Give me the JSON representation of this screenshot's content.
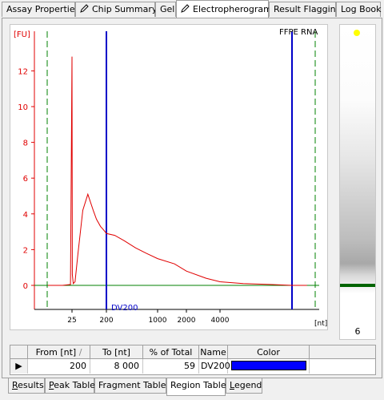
{
  "top_tabs": [
    {
      "label": "Assay Properties"
    },
    {
      "label": "Chip Summary"
    },
    {
      "label": "Gel"
    },
    {
      "label": "Electropherogram"
    },
    {
      "label": "Result Flagging"
    },
    {
      "label": "Log Book"
    }
  ],
  "chart": {
    "sample_name": "FFPE RNA",
    "y_unit_label": "[FU]",
    "x_unit_label": "[nt]",
    "region_label": "DV200",
    "colors": {
      "trace": "#e00000",
      "marker": "#0000c8",
      "baseline": "#008000",
      "dashed": "#008000"
    }
  },
  "chart_data": {
    "type": "line",
    "title": "FFPE RNA",
    "ylabel": "[FU]",
    "xlabel": "[nt]",
    "y_ticks": [
      "0",
      "2",
      "4",
      "6",
      "8",
      "10",
      "12"
    ],
    "x_ticks": [
      "25",
      "200",
      "1000",
      "2000",
      "4000"
    ],
    "ylim": [
      -1.3,
      14
    ],
    "region_markers_nt": [
      200,
      8000
    ],
    "series": [
      {
        "x_nt": [
          18,
          22,
          24.5,
          25,
          25.5,
          27,
          30,
          36,
          48,
          65,
          90,
          110,
          140,
          170,
          200,
          260,
          350,
          500,
          700,
          1000,
          1500,
          2000,
          3000,
          4000,
          5000,
          6500,
          8000,
          10000
        ],
        "y": [
          0.0,
          0.0,
          0.05,
          12.8,
          0.6,
          0.1,
          0.2,
          1.8,
          4.2,
          5.1,
          4.2,
          3.7,
          3.3,
          3.1,
          2.9,
          2.8,
          2.5,
          2.1,
          1.8,
          1.5,
          1.2,
          0.8,
          0.4,
          0.2,
          0.1,
          0.05,
          0.0,
          0.0
        ]
      }
    ]
  },
  "gel": {
    "lane_label": "6",
    "marker_color": "#ffff00",
    "band_color": "#006400"
  },
  "region_table": {
    "columns": [
      "From [nt]",
      "To [nt]",
      "% of Total",
      "Name",
      "Color"
    ],
    "sort_indicator": "/",
    "row": {
      "from": "200",
      "to": "8 000",
      "percent": "59",
      "name": "DV200",
      "color": "#0000ff"
    }
  },
  "bottom_tabs": [
    {
      "label": "Results",
      "underline": "R",
      "rest": "esults"
    },
    {
      "label": "Peak Table",
      "underline": "P",
      "rest": "eak Table"
    },
    {
      "label": "Fragment Table",
      "underline": "",
      "rest": "Fragment Table"
    },
    {
      "label": "Region Table",
      "underline": "",
      "rest": "Region Table"
    },
    {
      "label": "Legend",
      "underline": "L",
      "rest": "egend"
    }
  ]
}
